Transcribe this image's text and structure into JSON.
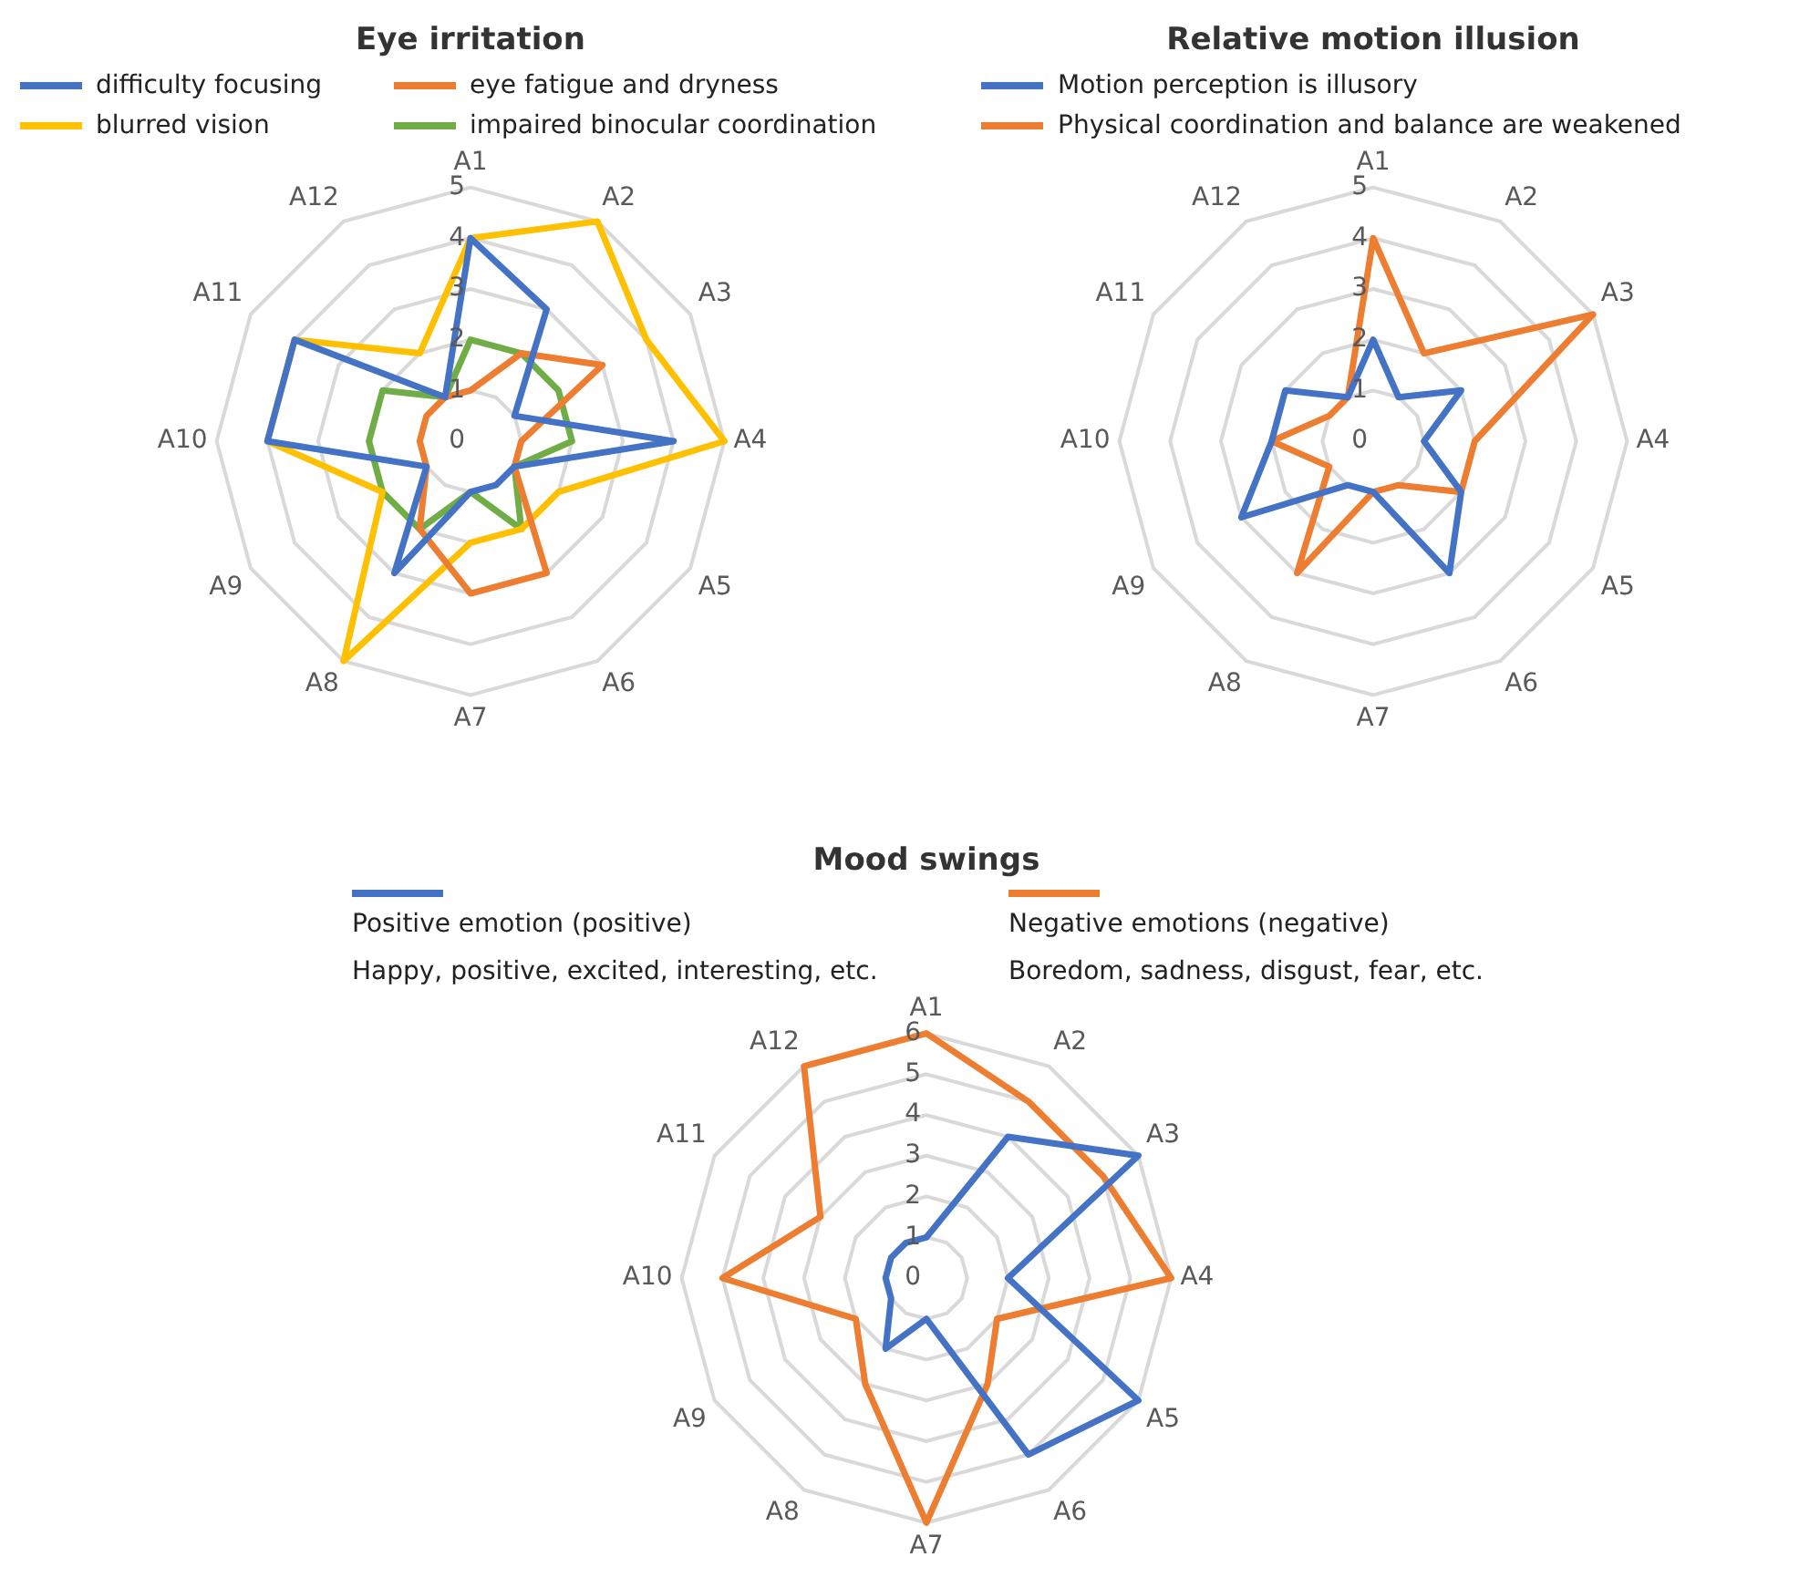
{
  "chart_data": [
    {
      "type": "radar",
      "title": "Eye irritation",
      "categories": [
        "A1",
        "A2",
        "A3",
        "A4",
        "A5",
        "A6",
        "A7",
        "A8",
        "A9",
        "A10",
        "A11",
        "A12"
      ],
      "ylim": [
        0,
        5
      ],
      "yticks": [
        0,
        1,
        2,
        3,
        4,
        5
      ],
      "grid": true,
      "legend": "top",
      "marker": "none",
      "series": [
        {
          "name": "difficulty focusing",
          "color": "#4472c4",
          "values": [
            4,
            3,
            1,
            4,
            1,
            1,
            1,
            3,
            1,
            4,
            4,
            1
          ]
        },
        {
          "name": "eye fatigue and dryness",
          "color": "#ed7d31",
          "values": [
            1,
            2,
            3,
            1,
            1,
            3,
            3,
            2,
            1,
            1,
            1,
            1
          ]
        },
        {
          "name": "blurred vision",
          "color": "#ffc000",
          "values": [
            4,
            5,
            4,
            5,
            2,
            2,
            2,
            5,
            2,
            4,
            4,
            2
          ]
        },
        {
          "name": "impaired binocular coordination",
          "color": "#70ad47",
          "values": [
            2,
            2,
            2,
            2,
            1,
            2,
            1,
            2,
            2,
            2,
            2,
            1
          ]
        }
      ]
    },
    {
      "type": "radar",
      "title": "Relative motion illusion",
      "categories": [
        "A1",
        "A2",
        "A3",
        "A4",
        "A5",
        "A6",
        "A7",
        "A8",
        "A9",
        "A10",
        "A11",
        "A12"
      ],
      "ylim": [
        0,
        5
      ],
      "yticks": [
        0,
        1,
        2,
        3,
        4,
        5
      ],
      "grid": true,
      "legend": "top",
      "marker": "none",
      "series": [
        {
          "name": "Motion perception is illusory",
          "color": "#4472c4",
          "values": [
            2,
            1,
            2,
            1,
            2,
            3,
            1,
            1,
            3,
            2,
            2,
            1
          ]
        },
        {
          "name": "Physical coordination and balance are weakened",
          "color": "#ed7d31",
          "values": [
            4,
            2,
            5,
            2,
            2,
            1,
            1,
            3,
            1,
            2,
            1,
            1
          ]
        }
      ]
    },
    {
      "type": "radar",
      "title": "Mood swings",
      "categories": [
        "A1",
        "A2",
        "A3",
        "A4",
        "A5",
        "A6",
        "A7",
        "A8",
        "A9",
        "A10",
        "A11",
        "A12"
      ],
      "ylim": [
        0,
        6
      ],
      "yticks": [
        0,
        1,
        2,
        3,
        4,
        5,
        6
      ],
      "grid": true,
      "legend": "top",
      "marker": "none",
      "annotations": [
        "Happy, positive, excited, interesting, etc.",
        "Boredom, sadness, disgust, fear, etc."
      ],
      "series": [
        {
          "name": "Positive emotion (positive)",
          "color": "#4472c4",
          "values": [
            1,
            4,
            6,
            2,
            6,
            5,
            1,
            2,
            1,
            1,
            1,
            1
          ]
        },
        {
          "name": "Negative emotions (negative)",
          "color": "#ed7d31",
          "values": [
            6,
            5,
            5,
            6,
            2,
            3,
            6,
            3,
            2,
            5,
            3,
            6
          ]
        }
      ]
    }
  ]
}
